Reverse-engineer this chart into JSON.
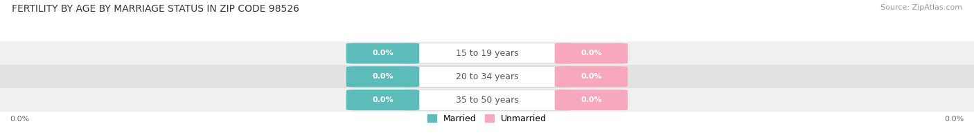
{
  "title": "FERTILITY BY AGE BY MARRIAGE STATUS IN ZIP CODE 98526",
  "source": "Source: ZipAtlas.com",
  "categories": [
    "15 to 19 years",
    "20 to 34 years",
    "35 to 50 years"
  ],
  "married_values": [
    0.0,
    0.0,
    0.0
  ],
  "unmarried_values": [
    0.0,
    0.0,
    0.0
  ],
  "married_color": "#5bbcb9",
  "unmarried_color": "#f7a8be",
  "bg_color": "#ffffff",
  "row_bg_light": "#f0f0f0",
  "row_bg_dark": "#e2e2e2",
  "title_fontsize": 10,
  "source_fontsize": 8,
  "label_fontsize": 9,
  "value_fontsize": 8,
  "legend_labels": [
    "Married",
    "Unmarried"
  ],
  "axis_label": "0.0%"
}
